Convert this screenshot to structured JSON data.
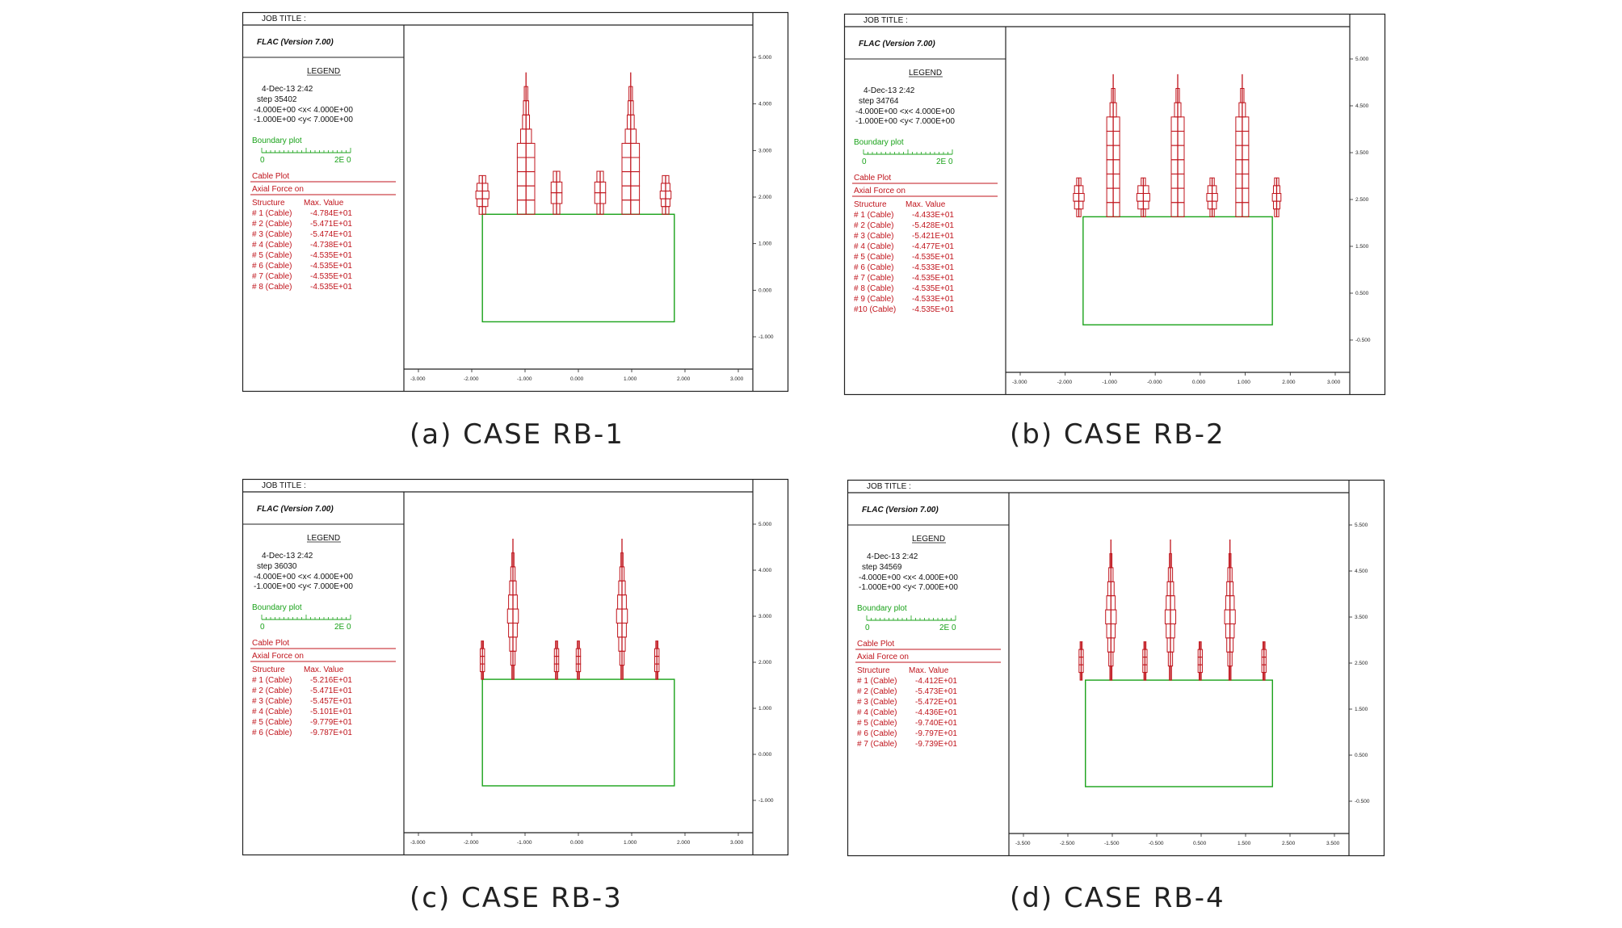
{
  "colors": {
    "cable": "#c0141c",
    "boundary": "#1aa21a",
    "frame": "#222222",
    "text": "#111111"
  },
  "panels": [
    {
      "caption": "(a) CASE RB-1",
      "header": {
        "job_title": "JOB TITLE :",
        "program": "FLAC (Version 7.00)"
      },
      "legend": {
        "title": "LEGEND",
        "date": "4-Dec-13   2:42",
        "step": "step   35402",
        "xrange": "-4.000E+00 <x<  4.000E+00",
        "yrange": "-1.000E+00 <y<  7.000E+00",
        "boundary_label": "Boundary plot",
        "scale_min": "0",
        "scale_max": "2E  0",
        "cable_plot": "Cable Plot",
        "axial_force": "Axial Force on",
        "structure_header": "Structure",
        "value_header": "Max. Value",
        "rows": [
          {
            "name": "# 1 (Cable)",
            "value": "-4.784E+01"
          },
          {
            "name": "# 2 (Cable)",
            "value": "-5.471E+01"
          },
          {
            "name": "# 3 (Cable)",
            "value": "-5.474E+01"
          },
          {
            "name": "# 4 (Cable)",
            "value": "-4.738E+01"
          },
          {
            "name": "# 5 (Cable)",
            "value": "-4.535E+01"
          },
          {
            "name": "# 6 (Cable)",
            "value": "-4.535E+01"
          },
          {
            "name": "# 7 (Cable)",
            "value": "-4.535E+01"
          },
          {
            "name": "# 8 (Cable)",
            "value": "-4.535E+01"
          }
        ]
      },
      "y_ticks": [
        "5.000",
        "4.000",
        "3.000",
        "2.000",
        "1.000",
        "0.000",
        "-1.000"
      ],
      "x_ticks": [
        "-3.000",
        "-2.000",
        "-1.000",
        "0.000",
        "1.000",
        "2.000",
        "3.000"
      ],
      "cables": [
        {
          "x": -2.2,
          "top": 3.0,
          "profile": [
            0.15,
            0.25,
            0.3,
            0.25,
            0.15
          ]
        },
        {
          "x": -1.2,
          "top": 5.4,
          "profile": [
            0.0,
            0.08,
            0.12,
            0.16,
            0.25,
            0.4,
            0.4,
            0.4,
            0.4,
            0.4
          ]
        },
        {
          "x": -0.5,
          "top": 3.1,
          "profile": [
            0.15,
            0.25,
            0.25,
            0.15
          ]
        },
        {
          "x": 0.5,
          "top": 3.1,
          "profile": [
            0.15,
            0.25,
            0.25,
            0.15
          ]
        },
        {
          "x": 1.2,
          "top": 5.4,
          "profile": [
            0.0,
            0.08,
            0.12,
            0.16,
            0.25,
            0.4,
            0.4,
            0.4,
            0.4,
            0.4
          ]
        },
        {
          "x": 2.0,
          "top": 3.0,
          "profile": [
            0.15,
            0.2,
            0.25,
            0.2,
            0.15
          ]
        }
      ]
    },
    {
      "caption": "(b) CASE RB-2",
      "header": {
        "job_title": "JOB TITLE :",
        "program": "FLAC (Version 7.00)"
      },
      "legend": {
        "title": "LEGEND",
        "date": "4-Dec-13   2:42",
        "step": "step   34764",
        "xrange": "-4.000E+00 <x<  4.000E+00",
        "yrange": "-1.000E+00 <y<  7.000E+00",
        "boundary_label": "Boundary plot",
        "scale_min": "0",
        "scale_max": "2E  0",
        "cable_plot": "Cable Plot",
        "axial_force": "Axial Force on",
        "structure_header": "Structure",
        "value_header": "Max. Value",
        "rows": [
          {
            "name": "# 1 (Cable)",
            "value": "-4.433E+01"
          },
          {
            "name": "# 2 (Cable)",
            "value": "-5.428E+01"
          },
          {
            "name": "# 3 (Cable)",
            "value": "-5.421E+01"
          },
          {
            "name": "# 4 (Cable)",
            "value": "-4.477E+01"
          },
          {
            "name": "# 5 (Cable)",
            "value": "-4.535E+01"
          },
          {
            "name": "# 6 (Cable)",
            "value": "-4.533E+01"
          },
          {
            "name": "# 7 (Cable)",
            "value": "-4.535E+01"
          },
          {
            "name": "# 8 (Cable)",
            "value": "-4.535E+01"
          },
          {
            "name": "# 9 (Cable)",
            "value": "-4.533E+01"
          },
          {
            "name": "#10 (Cable)",
            "value": "-4.535E+01"
          }
        ]
      },
      "y_ticks": [
        "5.000",
        "4.500",
        "3.500",
        "2.500",
        "1.500",
        "0.500",
        "-0.500"
      ],
      "x_ticks": [
        "-3.000",
        "-2.000",
        "-1.000",
        "-0.000",
        "0.000",
        "1.000",
        "2.000",
        "3.000"
      ],
      "cables": [
        {
          "x": -2.3,
          "top": 3.0,
          "profile": [
            0.1,
            0.2,
            0.25,
            0.2,
            0.1
          ]
        },
        {
          "x": -1.5,
          "top": 5.4,
          "profile": [
            0.0,
            0.08,
            0.15,
            0.3,
            0.3,
            0.3,
            0.3,
            0.3,
            0.3,
            0.3
          ]
        },
        {
          "x": -0.8,
          "top": 3.0,
          "profile": [
            0.1,
            0.25,
            0.3,
            0.25,
            0.1
          ]
        },
        {
          "x": 0.0,
          "top": 5.4,
          "profile": [
            0.0,
            0.08,
            0.15,
            0.3,
            0.3,
            0.3,
            0.3,
            0.3,
            0.3,
            0.3
          ]
        },
        {
          "x": 0.8,
          "top": 3.0,
          "profile": [
            0.1,
            0.2,
            0.25,
            0.2,
            0.1
          ]
        },
        {
          "x": 1.5,
          "top": 5.4,
          "profile": [
            0.0,
            0.08,
            0.15,
            0.3,
            0.3,
            0.3,
            0.3,
            0.3,
            0.3,
            0.3
          ]
        },
        {
          "x": 2.3,
          "top": 3.0,
          "profile": [
            0.1,
            0.15,
            0.2,
            0.15,
            0.1
          ]
        }
      ]
    },
    {
      "caption": "(c) CASE RB-3",
      "header": {
        "job_title": "JOB TITLE :",
        "program": "FLAC (Version 7.00)"
      },
      "legend": {
        "title": "LEGEND",
        "date": "4-Dec-13   2:42",
        "step": "step   36030",
        "xrange": "-4.000E+00 <x<  4.000E+00",
        "yrange": "-1.000E+00 <y<  7.000E+00",
        "boundary_label": "Boundary plot",
        "scale_min": "0",
        "scale_max": "2E  0",
        "cable_plot": "Cable Plot",
        "axial_force": "Axial Force on",
        "structure_header": "Structure",
        "value_header": "Max. Value",
        "rows": [
          {
            "name": "# 1 (Cable)",
            "value": "-5.216E+01"
          },
          {
            "name": "# 2 (Cable)",
            "value": "-5.471E+01"
          },
          {
            "name": "# 3 (Cable)",
            "value": "-5.457E+01"
          },
          {
            "name": "# 4 (Cable)",
            "value": "-5.101E+01"
          },
          {
            "name": "# 5 (Cable)",
            "value": "-9.779E+01"
          },
          {
            "name": "# 6 (Cable)",
            "value": "-9.787E+01"
          }
        ]
      },
      "y_ticks": [
        "5.000",
        "4.000",
        "3.000",
        "2.000",
        "1.000",
        "0.000",
        "-1.000"
      ],
      "x_ticks": [
        "-3.000",
        "-2.000",
        "-1.000",
        "0.000",
        "1.000",
        "2.000",
        "3.000"
      ],
      "cables": [
        {
          "x": -2.2,
          "top": 3.0,
          "profile": [
            0.05,
            0.1,
            0.1,
            0.1,
            0.05
          ]
        },
        {
          "x": -1.5,
          "top": 5.4,
          "profile": [
            0.0,
            0.05,
            0.1,
            0.15,
            0.2,
            0.25,
            0.2,
            0.15,
            0.1,
            0.05
          ]
        },
        {
          "x": -0.5,
          "top": 3.0,
          "profile": [
            0.05,
            0.1,
            0.1,
            0.1,
            0.05
          ]
        },
        {
          "x": 0.0,
          "top": 3.0,
          "profile": [
            0.05,
            0.1,
            0.1,
            0.1,
            0.05
          ]
        },
        {
          "x": 1.0,
          "top": 5.4,
          "profile": [
            0.0,
            0.05,
            0.1,
            0.15,
            0.2,
            0.25,
            0.2,
            0.15,
            0.1,
            0.05
          ]
        },
        {
          "x": 1.8,
          "top": 3.0,
          "profile": [
            0.05,
            0.1,
            0.1,
            0.1,
            0.05
          ]
        }
      ]
    },
    {
      "caption": "(d) CASE RB-4",
      "header": {
        "job_title": "JOB TITLE :",
        "program": "FLAC (Version 7.00)"
      },
      "legend": {
        "title": "LEGEND",
        "date": "4-Dec-13   2:42",
        "step": "step   34569",
        "xrange": "-4.000E+00 <x<  4.000E+00",
        "yrange": "-1.000E+00 <y<  7.000E+00",
        "boundary_label": "Boundary plot",
        "scale_min": "0",
        "scale_max": "2E  0",
        "cable_plot": "Cable Plot",
        "axial_force": "Axial Force on",
        "structure_header": "Structure",
        "value_header": "Max. Value",
        "rows": [
          {
            "name": "# 1 (Cable)",
            "value": "-4.412E+01"
          },
          {
            "name": "# 2 (Cable)",
            "value": "-5.473E+01"
          },
          {
            "name": "# 3 (Cable)",
            "value": "-5.472E+01"
          },
          {
            "name": "# 4 (Cable)",
            "value": "-4.436E+01"
          },
          {
            "name": "# 5 (Cable)",
            "value": "-9.740E+01"
          },
          {
            "name": "# 6 (Cable)",
            "value": "-9.797E+01"
          },
          {
            "name": "# 7 (Cable)",
            "value": "-9.739E+01"
          }
        ]
      },
      "y_ticks": [
        "5.500",
        "4.500",
        "3.500",
        "2.500",
        "1.500",
        "0.500",
        "-0.500"
      ],
      "x_ticks": [
        "-3.500",
        "-2.500",
        "-1.500",
        "-0.500",
        "0.500",
        "1.500",
        "2.500",
        "3.500"
      ],
      "cables": [
        {
          "x": -2.3,
          "top": 3.0,
          "profile": [
            0.05,
            0.1,
            0.1,
            0.1,
            0.05
          ]
        },
        {
          "x": -1.6,
          "top": 5.4,
          "profile": [
            0.0,
            0.05,
            0.1,
            0.15,
            0.2,
            0.25,
            0.2,
            0.15,
            0.1,
            0.05
          ]
        },
        {
          "x": -0.8,
          "top": 3.0,
          "profile": [
            0.05,
            0.1,
            0.1,
            0.1,
            0.05
          ]
        },
        {
          "x": -0.2,
          "top": 5.4,
          "profile": [
            0.0,
            0.05,
            0.1,
            0.15,
            0.2,
            0.25,
            0.2,
            0.15,
            0.1,
            0.05
          ]
        },
        {
          "x": 0.5,
          "top": 3.0,
          "profile": [
            0.05,
            0.1,
            0.1,
            0.1,
            0.05
          ]
        },
        {
          "x": 1.2,
          "top": 5.4,
          "profile": [
            0.0,
            0.05,
            0.1,
            0.15,
            0.2,
            0.25,
            0.2,
            0.15,
            0.1,
            0.05
          ]
        },
        {
          "x": 2.0,
          "top": 3.0,
          "profile": [
            0.05,
            0.1,
            0.1,
            0.1,
            0.05
          ]
        }
      ]
    }
  ]
}
